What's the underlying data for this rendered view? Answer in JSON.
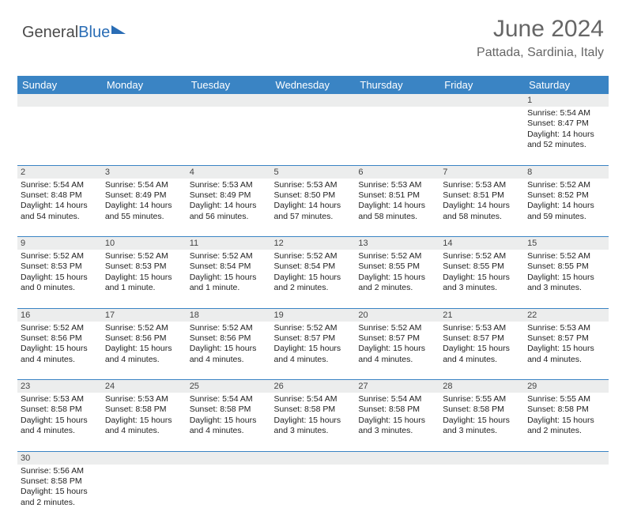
{
  "logo": {
    "part1": "General",
    "part2": "Blue"
  },
  "title": "June 2024",
  "subtitle": "Pattada, Sardinia, Italy",
  "colors": {
    "header_bg": "#3a84c4",
    "header_text": "#ffffff",
    "daynum_bg": "#eceded",
    "border": "#3a84c4",
    "title_color": "#666666",
    "text_color": "#222222"
  },
  "day_headers": [
    "Sunday",
    "Monday",
    "Tuesday",
    "Wednesday",
    "Thursday",
    "Friday",
    "Saturday"
  ],
  "weeks": [
    [
      null,
      null,
      null,
      null,
      null,
      null,
      {
        "n": "1",
        "sunrise": "Sunrise: 5:54 AM",
        "sunset": "Sunset: 8:47 PM",
        "daylight": "Daylight: 14 hours and 52 minutes."
      }
    ],
    [
      {
        "n": "2",
        "sunrise": "Sunrise: 5:54 AM",
        "sunset": "Sunset: 8:48 PM",
        "daylight": "Daylight: 14 hours and 54 minutes."
      },
      {
        "n": "3",
        "sunrise": "Sunrise: 5:54 AM",
        "sunset": "Sunset: 8:49 PM",
        "daylight": "Daylight: 14 hours and 55 minutes."
      },
      {
        "n": "4",
        "sunrise": "Sunrise: 5:53 AM",
        "sunset": "Sunset: 8:49 PM",
        "daylight": "Daylight: 14 hours and 56 minutes."
      },
      {
        "n": "5",
        "sunrise": "Sunrise: 5:53 AM",
        "sunset": "Sunset: 8:50 PM",
        "daylight": "Daylight: 14 hours and 57 minutes."
      },
      {
        "n": "6",
        "sunrise": "Sunrise: 5:53 AM",
        "sunset": "Sunset: 8:51 PM",
        "daylight": "Daylight: 14 hours and 58 minutes."
      },
      {
        "n": "7",
        "sunrise": "Sunrise: 5:53 AM",
        "sunset": "Sunset: 8:51 PM",
        "daylight": "Daylight: 14 hours and 58 minutes."
      },
      {
        "n": "8",
        "sunrise": "Sunrise: 5:52 AM",
        "sunset": "Sunset: 8:52 PM",
        "daylight": "Daylight: 14 hours and 59 minutes."
      }
    ],
    [
      {
        "n": "9",
        "sunrise": "Sunrise: 5:52 AM",
        "sunset": "Sunset: 8:53 PM",
        "daylight": "Daylight: 15 hours and 0 minutes."
      },
      {
        "n": "10",
        "sunrise": "Sunrise: 5:52 AM",
        "sunset": "Sunset: 8:53 PM",
        "daylight": "Daylight: 15 hours and 1 minute."
      },
      {
        "n": "11",
        "sunrise": "Sunrise: 5:52 AM",
        "sunset": "Sunset: 8:54 PM",
        "daylight": "Daylight: 15 hours and 1 minute."
      },
      {
        "n": "12",
        "sunrise": "Sunrise: 5:52 AM",
        "sunset": "Sunset: 8:54 PM",
        "daylight": "Daylight: 15 hours and 2 minutes."
      },
      {
        "n": "13",
        "sunrise": "Sunrise: 5:52 AM",
        "sunset": "Sunset: 8:55 PM",
        "daylight": "Daylight: 15 hours and 2 minutes."
      },
      {
        "n": "14",
        "sunrise": "Sunrise: 5:52 AM",
        "sunset": "Sunset: 8:55 PM",
        "daylight": "Daylight: 15 hours and 3 minutes."
      },
      {
        "n": "15",
        "sunrise": "Sunrise: 5:52 AM",
        "sunset": "Sunset: 8:55 PM",
        "daylight": "Daylight: 15 hours and 3 minutes."
      }
    ],
    [
      {
        "n": "16",
        "sunrise": "Sunrise: 5:52 AM",
        "sunset": "Sunset: 8:56 PM",
        "daylight": "Daylight: 15 hours and 4 minutes."
      },
      {
        "n": "17",
        "sunrise": "Sunrise: 5:52 AM",
        "sunset": "Sunset: 8:56 PM",
        "daylight": "Daylight: 15 hours and 4 minutes."
      },
      {
        "n": "18",
        "sunrise": "Sunrise: 5:52 AM",
        "sunset": "Sunset: 8:56 PM",
        "daylight": "Daylight: 15 hours and 4 minutes."
      },
      {
        "n": "19",
        "sunrise": "Sunrise: 5:52 AM",
        "sunset": "Sunset: 8:57 PM",
        "daylight": "Daylight: 15 hours and 4 minutes."
      },
      {
        "n": "20",
        "sunrise": "Sunrise: 5:52 AM",
        "sunset": "Sunset: 8:57 PM",
        "daylight": "Daylight: 15 hours and 4 minutes."
      },
      {
        "n": "21",
        "sunrise": "Sunrise: 5:53 AM",
        "sunset": "Sunset: 8:57 PM",
        "daylight": "Daylight: 15 hours and 4 minutes."
      },
      {
        "n": "22",
        "sunrise": "Sunrise: 5:53 AM",
        "sunset": "Sunset: 8:57 PM",
        "daylight": "Daylight: 15 hours and 4 minutes."
      }
    ],
    [
      {
        "n": "23",
        "sunrise": "Sunrise: 5:53 AM",
        "sunset": "Sunset: 8:58 PM",
        "daylight": "Daylight: 15 hours and 4 minutes."
      },
      {
        "n": "24",
        "sunrise": "Sunrise: 5:53 AM",
        "sunset": "Sunset: 8:58 PM",
        "daylight": "Daylight: 15 hours and 4 minutes."
      },
      {
        "n": "25",
        "sunrise": "Sunrise: 5:54 AM",
        "sunset": "Sunset: 8:58 PM",
        "daylight": "Daylight: 15 hours and 4 minutes."
      },
      {
        "n": "26",
        "sunrise": "Sunrise: 5:54 AM",
        "sunset": "Sunset: 8:58 PM",
        "daylight": "Daylight: 15 hours and 3 minutes."
      },
      {
        "n": "27",
        "sunrise": "Sunrise: 5:54 AM",
        "sunset": "Sunset: 8:58 PM",
        "daylight": "Daylight: 15 hours and 3 minutes."
      },
      {
        "n": "28",
        "sunrise": "Sunrise: 5:55 AM",
        "sunset": "Sunset: 8:58 PM",
        "daylight": "Daylight: 15 hours and 3 minutes."
      },
      {
        "n": "29",
        "sunrise": "Sunrise: 5:55 AM",
        "sunset": "Sunset: 8:58 PM",
        "daylight": "Daylight: 15 hours and 2 minutes."
      }
    ],
    [
      {
        "n": "30",
        "sunrise": "Sunrise: 5:56 AM",
        "sunset": "Sunset: 8:58 PM",
        "daylight": "Daylight: 15 hours and 2 minutes."
      },
      null,
      null,
      null,
      null,
      null,
      null
    ]
  ]
}
